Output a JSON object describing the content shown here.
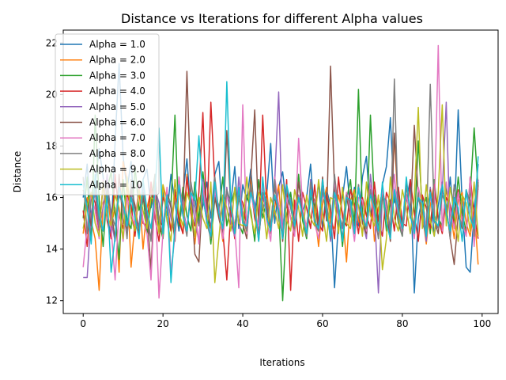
{
  "chart_data": {
    "type": "line",
    "title": "Distance vs Iterations for different Alpha values",
    "xlabel": "Iterations",
    "ylabel": "Distance",
    "xlim": [
      -5,
      104
    ],
    "ylim": [
      11.5,
      22.5
    ],
    "x_ticks": [
      0,
      20,
      40,
      60,
      80,
      100
    ],
    "y_ticks": [
      12,
      14,
      16,
      18,
      20,
      22
    ],
    "grid": false,
    "legend_position": "top-left",
    "series": [
      {
        "name": "Alpha = 1.0",
        "color": "#1f77b4",
        "values": [
          16.0,
          17.3,
          15.0,
          16.5,
          17.9,
          16.8,
          15.4,
          14.5,
          18.2,
          21.2,
          17.6,
          16.3,
          17.4,
          15.1,
          14.8,
          16.7,
          17.1,
          15.6,
          16.4,
          14.9,
          16.2,
          15.3,
          16.9,
          15.8,
          14.7,
          16.1,
          17.5,
          15.4,
          16.0,
          14.9,
          15.7,
          16.6,
          15.2,
          16.9,
          17.4,
          15.1,
          16.3,
          15.8,
          17.2,
          14.8,
          16.5,
          15.9,
          17.1,
          15.3,
          16.7,
          15.5,
          16.1,
          18.1,
          15.0,
          16.4,
          17.0,
          15.6,
          16.2,
          14.9,
          16.8,
          15.4,
          16.0,
          17.3,
          15.2,
          16.6,
          14.8,
          16.3,
          15.7,
          12.5,
          15.1,
          16.0,
          17.2,
          15.5,
          16.4,
          14.9,
          16.8,
          17.6,
          15.3,
          16.1,
          14.7,
          16.5,
          17.2,
          19.1,
          15.8,
          16.4,
          14.6,
          15.9,
          16.7,
          12.3,
          15.2,
          16.0,
          14.8,
          16.3,
          14.5,
          15.7,
          16.6,
          15.2,
          16.8,
          15.0,
          19.4,
          15.8,
          13.3,
          13.1,
          15.5,
          17.3
        ]
      },
      {
        "name": "Alpha = 2.0",
        "color": "#ff7f0e",
        "values": [
          14.6,
          16.0,
          15.1,
          14.4,
          12.4,
          15.8,
          16.2,
          14.9,
          15.6,
          13.1,
          17.4,
          16.7,
          13.3,
          15.1,
          16.4,
          14.0,
          15.6,
          16.3,
          15.2,
          14.8,
          16.5,
          15.9,
          14.7,
          16.1,
          15.3,
          14.6,
          16.9,
          15.4,
          14.2,
          15.8,
          16.4,
          15.1,
          14.7,
          16.0,
          15.5,
          14.3,
          16.2,
          15.7,
          14.9,
          16.1,
          15.4,
          14.6,
          16.8,
          15.2,
          14.5,
          15.9,
          16.3,
          14.8,
          15.6,
          16.5,
          14.4,
          15.8,
          15.2,
          14.6,
          16.0,
          15.3,
          14.9,
          16.2,
          15.5,
          14.1,
          15.7,
          16.4,
          15.0,
          14.8,
          16.1,
          15.4,
          13.5,
          15.9,
          16.3,
          15.1,
          14.7,
          15.8,
          16.5,
          14.3,
          15.6,
          16.2,
          15.0,
          14.8,
          18.4,
          15.5,
          14.6,
          16.1,
          15.3,
          14.9,
          16.0,
          15.4,
          14.2,
          15.7,
          16.6,
          15.1,
          14.8,
          16.3,
          15.5,
          14.4,
          15.9,
          16.2,
          15.0,
          14.5,
          15.6,
          13.4
        ]
      },
      {
        "name": "Alpha = 3.0",
        "color": "#2ca02c",
        "values": [
          15.2,
          16.8,
          14.3,
          19.2,
          15.9,
          14.1,
          16.3,
          17.0,
          15.4,
          13.6,
          16.7,
          15.1,
          14.8,
          17.2,
          15.5,
          16.1,
          14.6,
          15.8,
          16.9,
          15.0,
          14.4,
          16.2,
          15.7,
          19.2,
          14.9,
          16.4,
          15.3,
          14.7,
          16.6,
          15.1,
          17.0,
          15.6,
          14.2,
          16.0,
          15.4,
          16.8,
          14.9,
          15.7,
          16.3,
          15.0,
          14.6,
          16.1,
          15.5,
          14.3,
          16.7,
          15.2,
          15.9,
          14.8,
          16.4,
          15.6,
          12.0,
          15.3,
          16.2,
          14.7,
          16.9,
          15.1,
          14.4,
          16.0,
          15.7,
          15.0,
          16.5,
          15.2,
          14.8,
          16.3,
          15.6,
          14.1,
          15.9,
          16.7,
          14.9,
          20.2,
          15.4,
          14.6,
          19.2,
          15.8,
          15.1,
          16.4,
          14.7,
          15.9,
          16.2,
          15.0,
          14.5,
          16.6,
          15.3,
          14.8,
          18.2,
          15.5,
          16.0,
          14.6,
          16.7,
          15.2,
          14.9,
          16.4,
          15.7,
          15.1,
          16.8,
          15.4,
          14.7,
          16.1,
          18.7,
          16.3
        ]
      },
      {
        "name": "Alpha = 4.0",
        "color": "#d62728",
        "values": [
          15.5,
          14.1,
          16.2,
          15.8,
          14.7,
          16.5,
          15.1,
          14.4,
          16.9,
          15.3,
          14.8,
          16.1,
          15.7,
          14.5,
          16.4,
          15.0,
          14.9,
          16.6,
          15.2,
          14.3,
          16.0,
          15.6,
          14.7,
          16.3,
          15.1,
          14.6,
          16.8,
          15.4,
          14.9,
          16.2,
          19.3,
          15.0,
          19.7,
          16.5,
          15.3,
          14.7,
          12.8,
          15.5,
          14.4,
          16.1,
          15.8,
          14.9,
          16.4,
          15.2,
          14.6,
          19.2,
          15.7,
          14.8,
          16.0,
          15.4,
          14.5,
          16.7,
          12.4,
          15.9,
          14.3,
          16.2,
          15.6,
          14.8,
          16.5,
          15.0,
          14.7,
          16.1,
          15.5,
          14.4,
          16.8,
          15.2,
          14.9,
          16.3,
          15.7,
          14.6,
          16.0,
          15.3,
          14.8,
          16.6,
          15.1,
          14.5,
          16.2,
          15.8,
          14.7,
          16.4,
          15.0,
          14.9,
          16.7,
          15.4,
          14.3,
          16.1,
          15.6,
          14.8,
          16.5,
          15.2,
          14.6,
          16.0,
          15.7,
          14.9,
          16.3,
          15.1,
          14.5,
          16.8,
          15.4,
          14.4
        ]
      },
      {
        "name": "Alpha = 5.0",
        "color": "#9467bd",
        "values": [
          12.9,
          12.9,
          15.4,
          16.2,
          14.8,
          15.6,
          16.9,
          15.1,
          14.3,
          16.4,
          15.7,
          14.6,
          16.1,
          15.3,
          14.9,
          16.6,
          15.0,
          14.4,
          16.3,
          15.8,
          14.7,
          16.0,
          15.2,
          14.5,
          16.5,
          15.6,
          14.8,
          16.2,
          15.1,
          14.3,
          16.7,
          15.4,
          14.9,
          16.1,
          15.7,
          14.6,
          16.4,
          15.0,
          14.5,
          16.8,
          15.3,
          14.7,
          16.2,
          15.8,
          14.4,
          16.0,
          15.5,
          14.9,
          16.6,
          20.1,
          14.6,
          16.3,
          15.9,
          14.8,
          16.1,
          15.4,
          14.5,
          16.7,
          15.0,
          14.9,
          16.4,
          15.7,
          14.3,
          16.2,
          15.2,
          14.8,
          16.0,
          15.6,
          14.6,
          16.5,
          15.1,
          14.4,
          16.9,
          15.5,
          12.3,
          16.1,
          15.8,
          14.5,
          16.3,
          15.2,
          14.9,
          16.6,
          15.4,
          14.7,
          16.0,
          15.6,
          14.3,
          16.4,
          15.1,
          14.8,
          16.2,
          19.7,
          14.6,
          16.5,
          15.3,
          14.9,
          16.1,
          15.8,
          14.4,
          16.7
        ]
      },
      {
        "name": "Alpha = 6.0",
        "color": "#8c564b",
        "values": [
          16.3,
          15.8,
          14.9,
          16.6,
          15.2,
          14.7,
          16.1,
          15.5,
          14.4,
          16.9,
          15.0,
          14.8,
          16.3,
          15.7,
          14.6,
          16.0,
          15.4,
          13.2,
          16.5,
          15.1,
          14.9,
          16.2,
          15.6,
          14.3,
          16.8,
          15.3,
          20.9,
          16.1,
          13.8,
          13.5,
          16.4,
          15.9,
          14.7,
          16.0,
          15.2,
          14.5,
          18.6,
          15.6,
          14.8,
          16.3,
          15.0,
          14.4,
          16.7,
          19.4,
          14.9,
          16.1,
          15.5,
          14.6,
          16.4,
          15.7,
          14.3,
          16.0,
          15.2,
          14.8,
          16.6,
          15.4,
          14.5,
          16.2,
          15.9,
          14.7,
          16.8,
          15.1,
          21.1,
          16.3,
          15.6,
          14.4,
          16.0,
          15.3,
          14.9,
          16.5,
          15.0,
          14.6,
          16.2,
          15.7,
          14.8,
          16.1,
          15.4,
          14.3,
          18.5,
          15.8,
          14.7,
          16.6,
          15.2,
          18.8,
          16.0,
          15.5,
          14.9,
          16.3,
          15.1,
          14.6,
          16.4,
          15.7,
          14.4,
          13.4,
          15.3,
          14.8,
          16.2,
          15.9,
          14.5,
          16.5
        ]
      },
      {
        "name": "Alpha = 7.0",
        "color": "#e377c2",
        "values": [
          13.3,
          14.9,
          16.1,
          15.5,
          14.4,
          16.7,
          15.2,
          14.8,
          12.8,
          15.6,
          14.3,
          16.0,
          15.4,
          14.9,
          16.5,
          15.1,
          14.6,
          12.8,
          16.2,
          12.1,
          14.7,
          16.4,
          13.1,
          14.5,
          16.8,
          15.3,
          14.9,
          16.1,
          15.6,
          14.2,
          16.6,
          15.0,
          14.7,
          16.3,
          15.5,
          14.4,
          16.0,
          15.9,
          14.8,
          12.5,
          19.6,
          14.6,
          16.2,
          15.4,
          14.9,
          16.5,
          15.1,
          14.3,
          16.8,
          15.7,
          14.7,
          16.0,
          15.2,
          14.5,
          18.3,
          15.6,
          14.8,
          16.4,
          15.0,
          14.4,
          16.1,
          15.8,
          14.6,
          16.7,
          15.3,
          14.9,
          16.2,
          15.5,
          14.3,
          16.0,
          15.9,
          14.7,
          16.5,
          15.1,
          14.5,
          16.3,
          15.6,
          14.8,
          16.9,
          15.2,
          14.6,
          16.1,
          15.4,
          14.4,
          16.4,
          15.7,
          14.9,
          16.0,
          15.3,
          21.9,
          14.7,
          16.6,
          15.5,
          14.8,
          16.2,
          15.0,
          14.5,
          16.8,
          14.1,
          16.4
        ]
      },
      {
        "name": "Alpha = 8.0",
        "color": "#7f7f7f",
        "values": [
          16.8,
          14.6,
          15.9,
          16.3,
          15.0,
          14.7,
          16.5,
          15.4,
          14.9,
          16.1,
          15.7,
          14.4,
          16.7,
          15.2,
          14.8,
          16.2,
          15.5,
          14.3,
          16.9,
          15.1,
          14.6,
          16.0,
          15.8,
          14.7,
          16.4,
          15.3,
          14.5,
          16.6,
          15.6,
          14.9,
          16.1,
          15.0,
          14.4,
          16.8,
          15.4,
          14.8,
          16.3,
          15.7,
          14.6,
          16.0,
          15.2,
          14.7,
          16.5,
          15.5,
          14.3,
          16.2,
          15.9,
          14.9,
          16.7,
          15.1,
          14.6,
          16.4,
          15.6,
          14.8,
          16.0,
          15.3,
          14.5,
          16.6,
          15.0,
          14.7,
          16.2,
          15.8,
          14.4,
          16.9,
          15.4,
          14.9,
          16.1,
          15.7,
          14.6,
          16.5,
          15.2,
          14.8,
          16.3,
          15.5,
          14.4,
          16.0,
          15.9,
          14.7,
          20.6,
          15.1,
          14.5,
          16.4,
          15.6,
          14.9,
          16.2,
          15.0,
          14.6,
          20.4,
          15.3,
          14.8,
          16.1,
          15.7,
          14.4,
          16.5,
          15.4,
          14.9,
          16.3,
          15.8,
          14.5,
          16.6
        ]
      },
      {
        "name": "Alpha = 9.0",
        "color": "#bcbd22",
        "values": [
          14.8,
          15.7,
          16.2,
          15.0,
          14.5,
          16.6,
          15.3,
          14.9,
          16.1,
          15.6,
          14.4,
          16.8,
          15.2,
          14.7,
          16.3,
          15.5,
          14.8,
          16.0,
          15.9,
          14.6,
          16.5,
          15.1,
          14.3,
          16.7,
          15.4,
          14.9,
          16.2,
          15.7,
          14.5,
          16.0,
          15.2,
          14.8,
          16.6,
          12.7,
          14.4,
          16.1,
          15.6,
          14.7,
          16.4,
          15.0,
          14.9,
          16.8,
          15.3,
          14.6,
          16.2,
          15.8,
          14.4,
          16.0,
          15.5,
          14.8,
          16.5,
          15.1,
          14.7,
          16.3,
          15.6,
          14.5,
          16.1,
          15.2,
          14.9,
          16.7,
          15.4,
          14.3,
          16.0,
          15.9,
          14.6,
          16.4,
          15.0,
          14.8,
          16.2,
          15.7,
          14.5,
          16.6,
          15.3,
          14.9,
          16.1,
          13.2,
          14.4,
          16.8,
          15.2,
          14.7,
          16.3,
          15.6,
          14.6,
          16.0,
          19.5,
          14.8,
          16.5,
          15.1,
          14.5,
          16.2,
          19.6,
          14.9,
          16.4,
          15.4,
          14.3,
          16.1,
          15.8,
          14.7,
          16.6,
          14.5
        ]
      },
      {
        "name": "Alpha = 10",
        "color": "#17becf",
        "values": [
          16.5,
          15.6,
          14.2,
          16.9,
          15.3,
          14.7,
          16.1,
          13.1,
          14.5,
          16.4,
          15.8,
          14.9,
          16.0,
          15.2,
          14.4,
          16.7,
          15.5,
          14.8,
          16.3,
          18.7,
          14.6,
          16.1,
          12.7,
          14.9,
          16.5,
          15.3,
          14.7,
          16.2,
          15.9,
          18.4,
          16.0,
          15.1,
          14.5,
          16.6,
          15.4,
          14.8,
          20.5,
          15.7,
          14.6,
          16.4,
          15.0,
          14.9,
          16.2,
          15.6,
          14.3,
          16.8,
          15.2,
          14.7,
          16.1,
          15.5,
          14.4,
          16.5,
          15.8,
          14.9,
          16.0,
          15.3,
          14.6,
          16.3,
          15.1,
          14.8,
          16.7,
          15.4,
          14.5,
          16.2,
          15.7,
          14.3,
          16.0,
          15.9,
          14.6,
          16.4,
          15.2,
          14.9,
          16.1,
          15.6,
          14.7,
          16.6,
          15.0,
          14.4,
          16.3,
          15.5,
          14.8,
          16.8,
          15.3,
          14.6,
          16.0,
          15.8,
          14.5,
          16.2,
          15.1,
          14.9,
          16.5,
          15.4,
          14.7,
          16.0,
          15.6,
          14.3,
          16.3,
          15.2,
          14.8,
          17.6
        ]
      }
    ]
  }
}
